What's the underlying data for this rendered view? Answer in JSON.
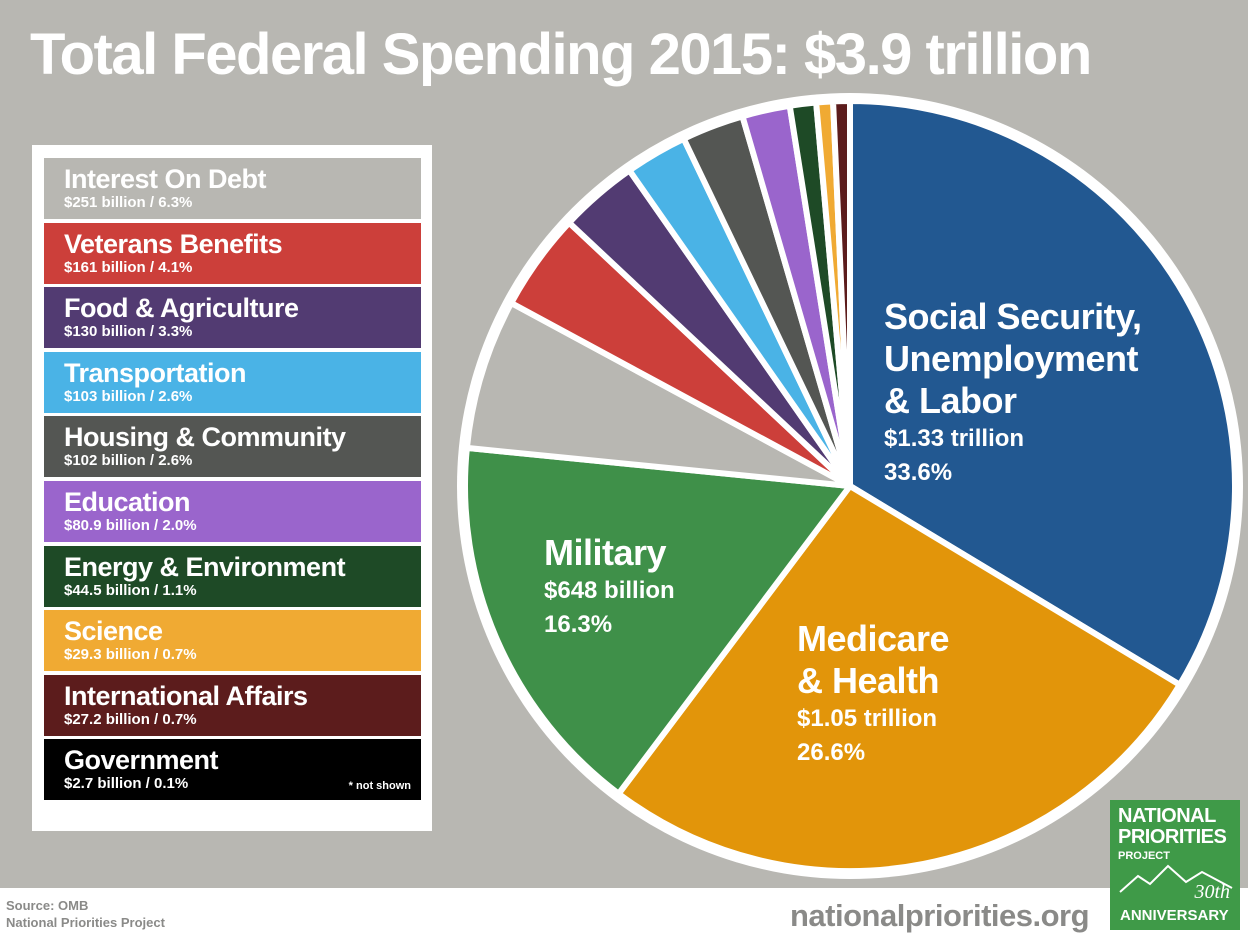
{
  "title": "Total Federal Spending 2015: $3.9 trillion",
  "legend": {
    "items": [
      {
        "name": "Interest On Debt",
        "value": "$251 billion / 6.3%",
        "color": "#b8b7b2"
      },
      {
        "name": "Veterans Benefits",
        "value": "$161 billion / 4.1%",
        "color": "#cc3f3a"
      },
      {
        "name": "Food & Agriculture",
        "value": "$130 billion / 3.3%",
        "color": "#523b72"
      },
      {
        "name": "Transportation",
        "value": "$103 billion / 2.6%",
        "color": "#4ab3e6"
      },
      {
        "name": "Housing & Community",
        "value": "$102 billion / 2.6%",
        "color": "#545653"
      },
      {
        "name": "Education",
        "value": "$80.9 billion / 2.0%",
        "color": "#9a65cc"
      },
      {
        "name": "Energy & Environment",
        "value": "$44.5 billion / 1.1%",
        "color": "#1e4a26"
      },
      {
        "name": "Science",
        "value": "$29.3 billion / 0.7%",
        "color": "#f0aa33"
      },
      {
        "name": "International Affairs",
        "value": "$27.2 billion / 0.7%",
        "color": "#5c1c1c"
      },
      {
        "name": "Government",
        "value": "$2.7 billion / 0.1%",
        "color": "#000000"
      }
    ],
    "note": "* not shown"
  },
  "slice_labels": {
    "social_security": {
      "line1": "Social Security,",
      "line2": "Unemployment",
      "line3": "& Labor",
      "amount": "$1.33 trillion",
      "percent": "33.6%"
    },
    "medicare": {
      "line1": "Medicare",
      "line2": "& Health",
      "amount": "$1.05 trillion",
      "percent": "26.6%"
    },
    "military": {
      "line1": "Military",
      "amount": "$648 billion",
      "percent": "16.3%"
    }
  },
  "source": {
    "line1": "Source: OMB",
    "line2": "National Priorities Project"
  },
  "website": "nationalpriorities.org",
  "logo": {
    "line1": "NATIONAL",
    "line2": "PRIORITIES",
    "line3": "PROJECT",
    "number": "30th",
    "anniversary": "ANNIVERSARY"
  },
  "chart_data": {
    "type": "pie",
    "title": "Total Federal Spending 2015: $3.9 trillion",
    "unit": "percent of total",
    "start_angle_deg": 0,
    "direction": "clockwise",
    "slices": [
      {
        "label": "Social Security, Unemployment & Labor",
        "value": 33.6,
        "amount": "$1.33 trillion",
        "color": "#225891"
      },
      {
        "label": "Medicare & Health",
        "value": 26.6,
        "amount": "$1.05 trillion",
        "color": "#e2950a"
      },
      {
        "label": "Military",
        "value": 16.3,
        "amount": "$648 billion",
        "color": "#3f9049"
      },
      {
        "label": "Interest On Debt",
        "value": 6.3,
        "amount": "$251 billion",
        "color": "#b8b7b2"
      },
      {
        "label": "Veterans Benefits",
        "value": 4.1,
        "amount": "$161 billion",
        "color": "#cc3f3a"
      },
      {
        "label": "Food & Agriculture",
        "value": 3.3,
        "amount": "$130 billion",
        "color": "#523b72"
      },
      {
        "label": "Transportation",
        "value": 2.6,
        "amount": "$103 billion",
        "color": "#4ab3e6"
      },
      {
        "label": "Housing & Community",
        "value": 2.6,
        "amount": "$102 billion",
        "color": "#545653"
      },
      {
        "label": "Education",
        "value": 2.0,
        "amount": "$80.9 billion",
        "color": "#9a65cc"
      },
      {
        "label": "Energy & Environment",
        "value": 1.1,
        "amount": "$44.5 billion",
        "color": "#1e4a26"
      },
      {
        "label": "Science",
        "value": 0.7,
        "amount": "$29.3 billion",
        "color": "#f0aa33"
      },
      {
        "label": "International Affairs",
        "value": 0.7,
        "amount": "$27.2 billion",
        "color": "#5c1c1c"
      }
    ]
  }
}
